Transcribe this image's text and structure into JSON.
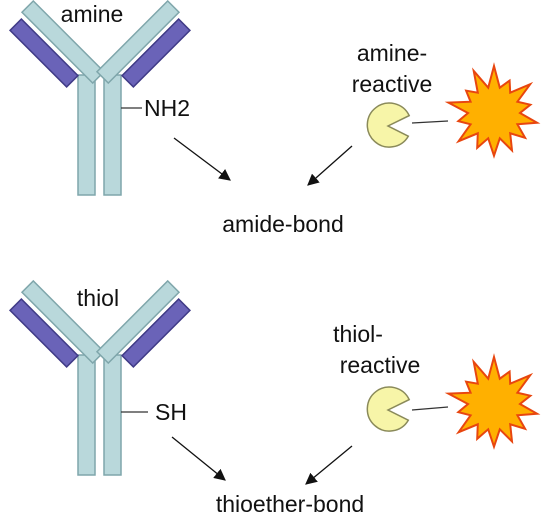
{
  "colors": {
    "antibody_fill": "#b9d8db",
    "antibody_stroke": "#7fa6ab",
    "light_chain_fill": "#6a63b8",
    "light_chain_stroke": "#3f3a86",
    "reactive_fill": "#f7f5a8",
    "reactive_stroke": "#8a8a5a",
    "dye_fill": "#ffb000",
    "dye_stroke": "#e8460f"
  },
  "icons": [
    "antibody-icon",
    "pacman-reactive-group-icon",
    "starburst-fluorophore-icon"
  ],
  "panels": [
    {
      "antibody_label": "amine",
      "group_label": "NH2",
      "reagent_label_line1": "amine-",
      "reagent_label_line2": "reactive",
      "product_label": "amide-bond"
    },
    {
      "antibody_label": "thiol",
      "group_label": "SH",
      "reagent_label_line1": "thiol-",
      "reagent_label_line2": "reactive",
      "product_label": "thioether-bond"
    }
  ]
}
